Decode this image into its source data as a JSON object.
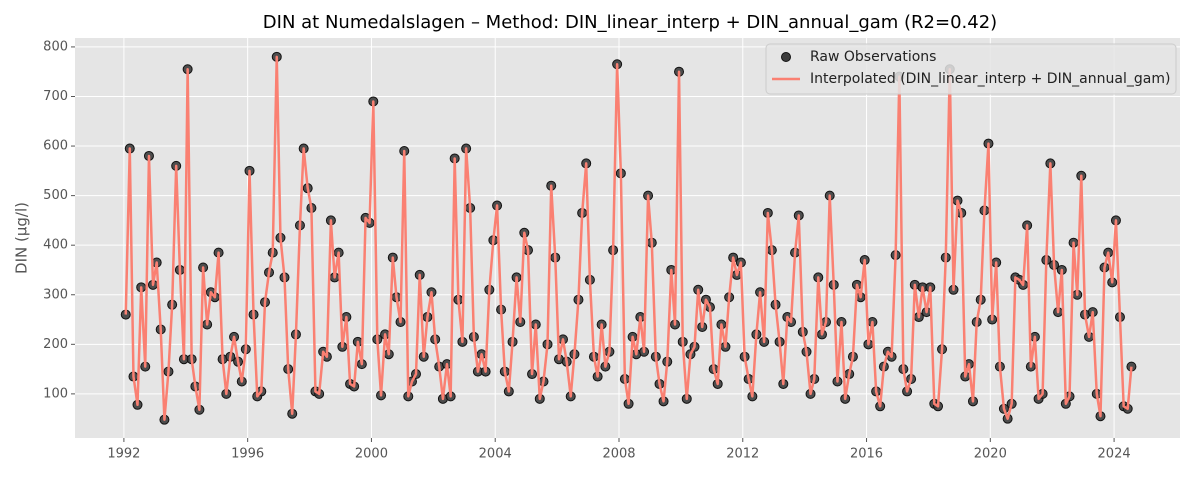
{
  "chart_data": {
    "type": "line",
    "title": "DIN at Numedalslagen – Method: DIN_linear_interp + DIN_annual_gam (R2=0.42)",
    "y_label": "DIN (µg/l)",
    "x": [
      1992.06,
      1992.19,
      1992.31,
      1992.44,
      1992.56,
      1992.69,
      1992.81,
      1992.94,
      1993.06,
      1993.19,
      1993.31,
      1993.44,
      1993.56,
      1993.69,
      1993.81,
      1993.94,
      1994.06,
      1994.19,
      1994.31,
      1994.44,
      1994.56,
      1994.69,
      1994.81,
      1994.94,
      1995.06,
      1995.19,
      1995.31,
      1995.44,
      1995.56,
      1995.69,
      1995.81,
      1995.94,
      1996.06,
      1996.19,
      1996.31,
      1996.44,
      1996.56,
      1996.69,
      1996.81,
      1996.94,
      1997.06,
      1997.19,
      1997.31,
      1997.44,
      1997.56,
      1997.69,
      1997.81,
      1997.94,
      1998.06,
      1998.19,
      1998.31,
      1998.44,
      1998.56,
      1998.69,
      1998.81,
      1998.94,
      1999.06,
      1999.19,
      1999.31,
      1999.44,
      1999.56,
      1999.69,
      1999.81,
      1999.94,
      2000.06,
      2000.19,
      2000.31,
      2000.44,
      2000.56,
      2000.69,
      2000.81,
      2000.94,
      2001.06,
      2001.19,
      2001.31,
      2001.44,
      2001.56,
      2001.69,
      2001.81,
      2001.94,
      2002.06,
      2002.19,
      2002.31,
      2002.44,
      2002.56,
      2002.69,
      2002.81,
      2002.94,
      2003.06,
      2003.19,
      2003.31,
      2003.44,
      2003.56,
      2003.69,
      2003.81,
      2003.94,
      2004.06,
      2004.19,
      2004.31,
      2004.44,
      2004.56,
      2004.69,
      2004.81,
      2004.94,
      2005.06,
      2005.19,
      2005.31,
      2005.44,
      2005.56,
      2005.69,
      2005.81,
      2005.94,
      2006.06,
      2006.19,
      2006.31,
      2006.44,
      2006.56,
      2006.69,
      2006.81,
      2006.94,
      2007.06,
      2007.19,
      2007.31,
      2007.44,
      2007.56,
      2007.69,
      2007.81,
      2007.94,
      2008.06,
      2008.19,
      2008.31,
      2008.44,
      2008.56,
      2008.69,
      2008.81,
      2008.94,
      2009.06,
      2009.19,
      2009.31,
      2009.44,
      2009.56,
      2009.69,
      2009.81,
      2009.94,
      2010.06,
      2010.19,
      2010.31,
      2010.44,
      2010.56,
      2010.69,
      2010.81,
      2010.94,
      2011.06,
      2011.19,
      2011.31,
      2011.44,
      2011.56,
      2011.69,
      2011.81,
      2011.94,
      2012.06,
      2012.19,
      2012.31,
      2012.44,
      2012.56,
      2012.69,
      2012.81,
      2012.94,
      2013.06,
      2013.19,
      2013.31,
      2013.44,
      2013.56,
      2013.69,
      2013.81,
      2013.94,
      2014.06,
      2014.19,
      2014.31,
      2014.44,
      2014.56,
      2014.69,
      2014.81,
      2014.94,
      2015.06,
      2015.19,
      2015.31,
      2015.44,
      2015.56,
      2015.69,
      2015.81,
      2015.94,
      2016.06,
      2016.19,
      2016.31,
      2016.44,
      2016.56,
      2016.69,
      2016.81,
      2016.94,
      2017.06,
      2017.19,
      2017.31,
      2017.44,
      2017.56,
      2017.69,
      2017.81,
      2017.94,
      2018.06,
      2018.19,
      2018.31,
      2018.44,
      2018.56,
      2018.69,
      2018.81,
      2018.94,
      2019.06,
      2019.19,
      2019.31,
      2019.44,
      2019.56,
      2019.69,
      2019.81,
      2019.94,
      2020.06,
      2020.19,
      2020.31,
      2020.44,
      2020.56,
      2020.69,
      2020.81,
      2020.94,
      2021.06,
      2021.19,
      2021.31,
      2021.44,
      2021.56,
      2021.69,
      2021.81,
      2021.94,
      2022.06,
      2022.19,
      2022.31,
      2022.44,
      2022.56,
      2022.69,
      2022.81,
      2022.94,
      2023.06,
      2023.19,
      2023.31,
      2023.44,
      2023.56,
      2023.69,
      2023.81,
      2023.94,
      2024.06,
      2024.19,
      2024.31,
      2024.44,
      2024.56
    ],
    "series": [
      {
        "name": "Raw Observations",
        "type": "scatter",
        "color": "#3c3c3c",
        "values": [
          260,
          595,
          135,
          78,
          315,
          155,
          580,
          320,
          365,
          230,
          48,
          145,
          280,
          560,
          350,
          170,
          755,
          170,
          115,
          68,
          355,
          240,
          305,
          295,
          385,
          170,
          100,
          175,
          215,
          165,
          125,
          190,
          550,
          260,
          95,
          105,
          285,
          345,
          385,
          780,
          415,
          335,
          150,
          60,
          220,
          440,
          595,
          515,
          475,
          105,
          100,
          185,
          175,
          450,
          335,
          385,
          195,
          255,
          120,
          115,
          205,
          160,
          455,
          445,
          690,
          210,
          97,
          220,
          180,
          375,
          295,
          245,
          590,
          95,
          125,
          140,
          340,
          175,
          255,
          305,
          210,
          155,
          90,
          160,
          95,
          575,
          290,
          205,
          595,
          475,
          215,
          145,
          180,
          145,
          310,
          410,
          480,
          270,
          145,
          105,
          205,
          335,
          245,
          425,
          390,
          140,
          240,
          90,
          125,
          200,
          520,
          375,
          170,
          210,
          165,
          95,
          180,
          290,
          465,
          565,
          330,
          175,
          135,
          240,
          155,
          185,
          390,
          765,
          545,
          130,
          80,
          215,
          180,
          255,
          185,
          500,
          405,
          175,
          120,
          85,
          165,
          350,
          240,
          750,
          205,
          90,
          180,
          195,
          310,
          235,
          290,
          275,
          150,
          120,
          240,
          195,
          295,
          375,
          340,
          365,
          175,
          130,
          95,
          220,
          305,
          205,
          465,
          390,
          280,
          205,
          120,
          255,
          245,
          385,
          460,
          225,
          185,
          100,
          130,
          335,
          220,
          245,
          500,
          320,
          125,
          245,
          90,
          140,
          175,
          320,
          295,
          370,
          200,
          245,
          105,
          75,
          155,
          185,
          175,
          380,
          740,
          150,
          105,
          130,
          320,
          255,
          315,
          265,
          315,
          80,
          75,
          190,
          375,
          755,
          310,
          490,
          465,
          135,
          160,
          85,
          245,
          290,
          470,
          605,
          250,
          365,
          155,
          70,
          50,
          80,
          335,
          330,
          320,
          440,
          155,
          215,
          90,
          100,
          370,
          565,
          360,
          265,
          350,
          80,
          95,
          405,
          300,
          540,
          260,
          215,
          265,
          100,
          55,
          355,
          385,
          325,
          450,
          255,
          75,
          70,
          155
        ]
      },
      {
        "name": "Interpolated (DIN_linear_interp + DIN_annual_gam)",
        "type": "line",
        "color": "#fa8072",
        "values": [
          260,
          595,
          135,
          78,
          315,
          155,
          580,
          320,
          365,
          230,
          48,
          145,
          280,
          560,
          350,
          170,
          755,
          170,
          115,
          68,
          355,
          240,
          305,
          295,
          385,
          170,
          100,
          175,
          215,
          165,
          125,
          190,
          550,
          260,
          95,
          105,
          285,
          345,
          385,
          780,
          415,
          335,
          150,
          60,
          220,
          440,
          595,
          515,
          475,
          105,
          100,
          185,
          175,
          450,
          335,
          385,
          195,
          255,
          120,
          115,
          205,
          160,
          455,
          445,
          690,
          210,
          97,
          220,
          180,
          375,
          295,
          245,
          590,
          95,
          125,
          140,
          340,
          175,
          255,
          305,
          210,
          155,
          90,
          160,
          95,
          575,
          290,
          205,
          595,
          475,
          215,
          145,
          180,
          145,
          310,
          410,
          480,
          270,
          145,
          105,
          205,
          335,
          245,
          425,
          390,
          140,
          240,
          90,
          125,
          200,
          520,
          375,
          170,
          210,
          165,
          95,
          180,
          290,
          465,
          565,
          330,
          175,
          135,
          240,
          155,
          185,
          390,
          765,
          545,
          130,
          80,
          215,
          180,
          255,
          185,
          500,
          405,
          175,
          120,
          85,
          165,
          350,
          240,
          750,
          205,
          90,
          180,
          195,
          310,
          235,
          290,
          275,
          150,
          120,
          240,
          195,
          295,
          375,
          340,
          365,
          175,
          130,
          95,
          220,
          305,
          205,
          465,
          390,
          280,
          205,
          120,
          255,
          245,
          385,
          460,
          225,
          185,
          100,
          130,
          335,
          220,
          245,
          500,
          320,
          125,
          245,
          90,
          140,
          175,
          320,
          295,
          370,
          200,
          245,
          105,
          75,
          155,
          185,
          175,
          380,
          740,
          150,
          105,
          130,
          320,
          255,
          315,
          265,
          315,
          80,
          75,
          190,
          375,
          755,
          310,
          490,
          465,
          135,
          160,
          85,
          245,
          290,
          470,
          605,
          250,
          365,
          155,
          70,
          50,
          80,
          335,
          330,
          320,
          440,
          155,
          215,
          90,
          100,
          370,
          565,
          360,
          265,
          350,
          80,
          95,
          405,
          300,
          540,
          260,
          215,
          265,
          100,
          55,
          355,
          385,
          325,
          450,
          255,
          75,
          70,
          155
        ]
      }
    ],
    "xlim": [
      1990.42,
      2026.13
    ],
    "xticks": [
      1992,
      1996,
      2000,
      2004,
      2008,
      2012,
      2016,
      2020,
      2024
    ],
    "ylim": [
      11,
      818
    ],
    "yticks": [
      100,
      200,
      300,
      400,
      500,
      600,
      700,
      800
    ],
    "grid": true,
    "legend": "upper right"
  }
}
